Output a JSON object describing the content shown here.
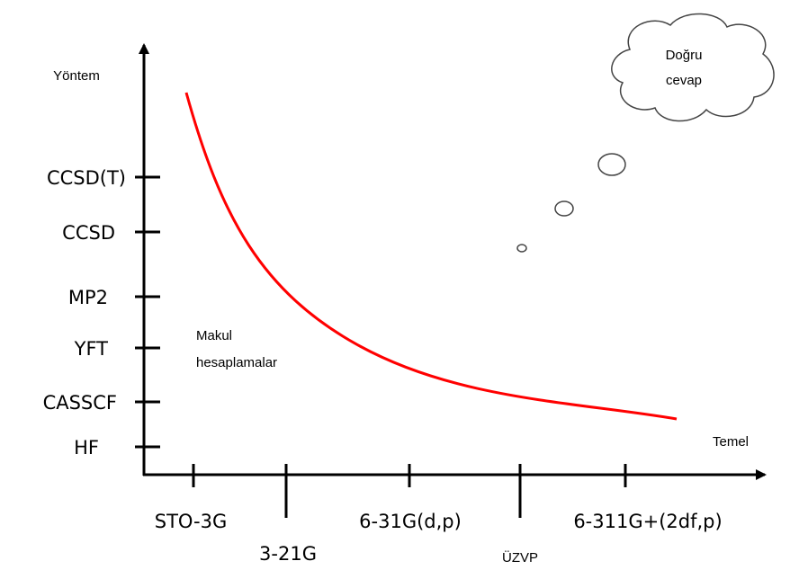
{
  "axes": {
    "y_label": "Yöntem",
    "x_label": "Temel"
  },
  "methods": [
    "CCSD(T)",
    "CCSD",
    "MP2",
    "YFT",
    "CASSCF",
    "HF"
  ],
  "basis_sets": [
    "STO-3G",
    "3-21G",
    "6-31G(d,p)",
    "ÜZVP",
    "6-311G+(2df,p)"
  ],
  "curve_label": [
    "Makul",
    "hesaplamalar"
  ],
  "cloud": [
    "Doğru",
    "cevap"
  ]
}
